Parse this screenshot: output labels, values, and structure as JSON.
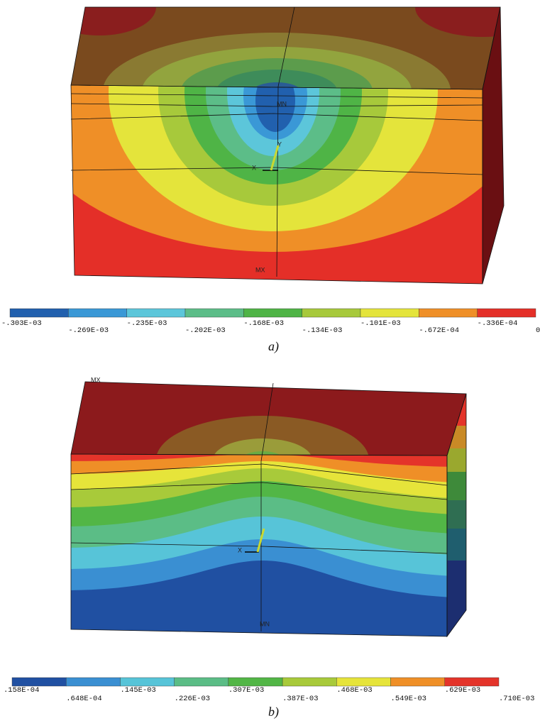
{
  "panels": [
    {
      "caption": "a)",
      "min_label": "MN",
      "max_label": "MX",
      "triad": {
        "x": "X",
        "y": "Y"
      },
      "legend": {
        "colors": [
          "#2160ae",
          "#3a98d6",
          "#5cc6da",
          "#5cbd88",
          "#4fb446",
          "#a7c93b",
          "#e4e43b",
          "#ef8f27",
          "#e42f28"
        ],
        "labels": [
          "-.303E-03",
          "-.269E-03",
          "-.235E-03",
          "-.202E-03",
          "-.168E-03",
          "-.134E-03",
          "-.101E-03",
          "-.672E-04",
          "-.336E-04",
          "0"
        ]
      }
    },
    {
      "caption": "b)",
      "min_label": "MN",
      "max_label": "MX",
      "triad": {
        "x": "X"
      },
      "legend": {
        "colors": [
          "#2050a2",
          "#3a8fd2",
          "#57c4d8",
          "#5bbd86",
          "#52b646",
          "#a8ca3a",
          "#e6e43a",
          "#ef8f27",
          "#e4342a"
        ],
        "labels": [
          ".158E-04",
          ".648E-04",
          ".145E-03",
          ".226E-03",
          ".307E-03",
          ".387E-03",
          ".468E-03",
          ".549E-03",
          ".629E-03",
          ".710E-03"
        ]
      }
    }
  ]
}
